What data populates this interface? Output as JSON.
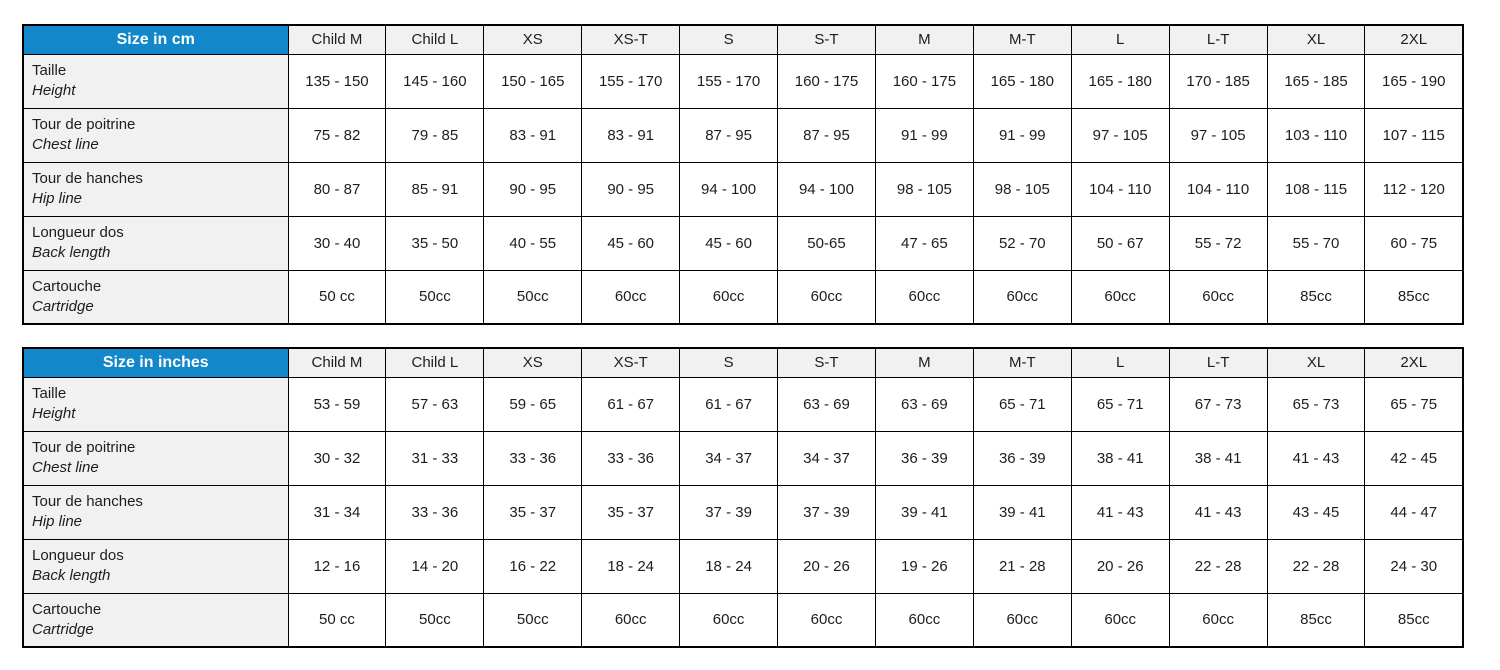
{
  "accent_color": "#1287c9",
  "header_bg_color": "#f1f1f1",
  "tables": [
    {
      "title": "Size in cm",
      "columns": [
        "Child M",
        "Child L",
        "XS",
        "XS-T",
        "S",
        "S-T",
        "M",
        "M-T",
        "L",
        "L-T",
        "XL",
        "2XL"
      ],
      "rows": [
        {
          "label_fr": "Taille",
          "label_en": "Height",
          "values": [
            "135 - 150",
            "145 - 160",
            "150 - 165",
            "155 - 170",
            "155 - 170",
            "160 - 175",
            "160 - 175",
            "165 - 180",
            "165 - 180",
            "170 - 185",
            "165 - 185",
            "165 - 190"
          ]
        },
        {
          "label_fr": "Tour de poitrine",
          "label_en": "Chest line",
          "values": [
            "75 - 82",
            "79 - 85",
            "83 - 91",
            "83 - 91",
            "87 - 95",
            "87 - 95",
            "91 - 99",
            "91 - 99",
            "97 - 105",
            "97 - 105",
            "103 - 110",
            "107 - 115"
          ]
        },
        {
          "label_fr": "Tour de hanches",
          "label_en": "Hip line",
          "values": [
            "80 - 87",
            "85 - 91",
            "90 - 95",
            "90 - 95",
            "94 - 100",
            "94 - 100",
            "98 - 105",
            "98 - 105",
            "104 - 110",
            "104 - 110",
            "108 - 115",
            "112 - 120"
          ]
        },
        {
          "label_fr": "Longueur dos",
          "label_en": "Back length",
          "values": [
            "30 - 40",
            "35 - 50",
            "40 - 55",
            "45 - 60",
            "45 - 60",
            "50-65",
            "47 - 65",
            "52 - 70",
            "50 - 67",
            "55 - 72",
            "55 - 70",
            "60 - 75"
          ]
        },
        {
          "label_fr": "Cartouche",
          "label_en": "Cartridge",
          "values": [
            "50 cc",
            "50cc",
            "50cc",
            "60cc",
            "60cc",
            "60cc",
            "60cc",
            "60cc",
            "60cc",
            "60cc",
            "85cc",
            "85cc"
          ]
        }
      ]
    },
    {
      "title": "Size in inches",
      "columns": [
        "Child M",
        "Child L",
        "XS",
        "XS-T",
        "S",
        "S-T",
        "M",
        "M-T",
        "L",
        "L-T",
        "XL",
        "2XL"
      ],
      "rows": [
        {
          "label_fr": "Taille",
          "label_en": "Height",
          "values": [
            "53 - 59",
            "57 - 63",
            "59 - 65",
            "61 - 67",
            "61 - 67",
            "63 - 69",
            "63 - 69",
            "65 - 71",
            "65 - 71",
            "67 - 73",
            "65 - 73",
            "65 - 75"
          ]
        },
        {
          "label_fr": "Tour de poitrine",
          "label_en": "Chest line",
          "values": [
            "30 - 32",
            "31 - 33",
            "33 - 36",
            "33 - 36",
            "34 - 37",
            "34 - 37",
            "36 - 39",
            "36 - 39",
            "38 - 41",
            "38 - 41",
            "41 - 43",
            "42 - 45"
          ]
        },
        {
          "label_fr": "Tour de hanches",
          "label_en": "Hip line",
          "values": [
            "31 - 34",
            "33 - 36",
            "35 - 37",
            "35 - 37",
            "37 - 39",
            "37 - 39",
            "39 - 41",
            "39 - 41",
            "41 - 43",
            "41 - 43",
            "43 - 45",
            "44 - 47"
          ]
        },
        {
          "label_fr": "Longueur dos",
          "label_en": "Back length",
          "values": [
            "12 - 16",
            "14 - 20",
            "16 - 22",
            "18 - 24",
            "18 - 24",
            "20 - 26",
            "19 - 26",
            "21 - 28",
            "20 - 26",
            "22 - 28",
            "22 - 28",
            "24 - 30"
          ]
        },
        {
          "label_fr": "Cartouche",
          "label_en": "Cartridge",
          "values": [
            "50 cc",
            "50cc",
            "50cc",
            "60cc",
            "60cc",
            "60cc",
            "60cc",
            "60cc",
            "60cc",
            "60cc",
            "85cc",
            "85cc"
          ]
        }
      ]
    }
  ]
}
